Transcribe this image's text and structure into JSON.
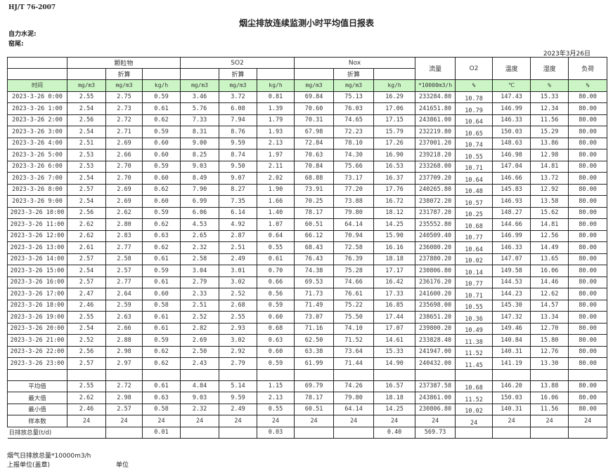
{
  "header": {
    "standard": "HJ/T  76-2007",
    "title": "烟尘排放连续监测小时平均值日报表",
    "company_label": "自力水泥:",
    "kiln_label": "窑尾:",
    "date": "2023年3月26日"
  },
  "table": {
    "groups": {
      "particulate": "颗粒物",
      "so2": "SO2",
      "nox": "Nox",
      "flow": "流量",
      "o2": "O2",
      "temp": "温度",
      "humidity": "湿度",
      "load": "负荷",
      "converted": "折算"
    },
    "units": [
      "时间",
      "mg/m3",
      "mg/m3",
      "kg/h",
      "mg/m3",
      "mg/m3",
      "kg/h",
      "mg/m3",
      "mg/m3",
      "kg/h",
      "*10000m3/h",
      "%",
      "℃",
      "%",
      "%"
    ],
    "rows": [
      [
        "2023-3-26 0:00",
        "2.55",
        "2.75",
        "0.59",
        "3.46",
        "3.72",
        "0.81",
        "69.84",
        "75.13",
        "16.29",
        "233284.80",
        "10.78",
        "147.43",
        "15.33",
        "80.00"
      ],
      [
        "2023-3-26 1:00",
        "2.54",
        "2.73",
        "0.61",
        "5.76",
        "6.08",
        "1.39",
        "70.60",
        "76.03",
        "17.06",
        "241651.80",
        "10.79",
        "146.99",
        "12.34",
        "80.00"
      ],
      [
        "2023-3-26 2:00",
        "2.56",
        "2.72",
        "0.62",
        "7.33",
        "7.94",
        "1.79",
        "70.31",
        "74.65",
        "17.15",
        "243861.00",
        "10.64",
        "146.33",
        "11.56",
        "80.00"
      ],
      [
        "2023-3-26 3:00",
        "2.54",
        "2.71",
        "0.59",
        "8.31",
        "8.76",
        "1.93",
        "67.98",
        "72.23",
        "15.79",
        "232219.80",
        "10.65",
        "150.03",
        "15.29",
        "80.00"
      ],
      [
        "2023-3-26 4:00",
        "2.51",
        "2.69",
        "0.60",
        "9.00",
        "9.59",
        "2.13",
        "72.84",
        "78.10",
        "17.26",
        "237001.20",
        "10.74",
        "148.63",
        "13.86",
        "80.00"
      ],
      [
        "2023-3-26 5:00",
        "2.53",
        "2.66",
        "0.60",
        "8.25",
        "8.74",
        "1.97",
        "70.63",
        "74.30",
        "16.90",
        "239218.20",
        "10.55",
        "146.98",
        "12.98",
        "80.00"
      ],
      [
        "2023-3-26 6:00",
        "2.53",
        "2.70",
        "0.59",
        "9.03",
        "9.50",
        "2.11",
        "70.84",
        "75.66",
        "16.53",
        "233268.00",
        "10.71",
        "147.04",
        "14.81",
        "80.00"
      ],
      [
        "2023-3-26 7:00",
        "2.54",
        "2.70",
        "0.60",
        "8.49",
        "9.07",
        "2.02",
        "68.88",
        "73.17",
        "16.37",
        "237709.20",
        "10.64",
        "146.66",
        "13.72",
        "80.00"
      ],
      [
        "2023-3-26 8:00",
        "2.57",
        "2.69",
        "0.62",
        "7.90",
        "8.27",
        "1.90",
        "73.91",
        "77.20",
        "17.76",
        "240265.80",
        "10.48",
        "145.83",
        "12.92",
        "80.00"
      ],
      [
        "2023-3-26 9:00",
        "2.54",
        "2.69",
        "0.60",
        "6.99",
        "7.35",
        "1.66",
        "70.25",
        "73.88",
        "16.72",
        "238072.20",
        "10.57",
        "146.93",
        "13.58",
        "80.00"
      ],
      [
        "2023-3-26 10:00",
        "2.56",
        "2.62",
        "0.59",
        "6.06",
        "6.14",
        "1.40",
        "78.17",
        "79.80",
        "18.12",
        "231787.20",
        "10.25",
        "148.27",
        "15.62",
        "80.00"
      ],
      [
        "2023-3-26 11:00",
        "2.62",
        "2.80",
        "0.62",
        "4.53",
        "4.92",
        "1.07",
        "60.51",
        "64.14",
        "14.25",
        "235552.80",
        "10.68",
        "144.66",
        "14.81",
        "80.00"
      ],
      [
        "2023-3-26 12:00",
        "2.62",
        "2.83",
        "0.63",
        "2.65",
        "2.87",
        "0.64",
        "66.12",
        "70.94",
        "15.90",
        "240509.40",
        "10.77",
        "146.99",
        "12.56",
        "80.00"
      ],
      [
        "2023-3-26 13:00",
        "2.61",
        "2.77",
        "0.62",
        "2.32",
        "2.51",
        "0.55",
        "68.43",
        "72.58",
        "16.16",
        "236080.20",
        "10.64",
        "146.33",
        "14.49",
        "80.00"
      ],
      [
        "2023-3-26 14:00",
        "2.57",
        "2.58",
        "0.61",
        "2.58",
        "2.49",
        "0.61",
        "76.43",
        "76.39",
        "18.18",
        "237880.20",
        "10.02",
        "147.07",
        "13.65",
        "80.00"
      ],
      [
        "2023-3-26 15:00",
        "2.54",
        "2.57",
        "0.59",
        "3.04",
        "3.01",
        "0.70",
        "74.38",
        "75.28",
        "17.17",
        "230806.80",
        "10.14",
        "149.58",
        "16.06",
        "80.00"
      ],
      [
        "2023-3-26 16:00",
        "2.57",
        "2.77",
        "0.61",
        "2.79",
        "3.02",
        "0.66",
        "69.53",
        "74.66",
        "16.42",
        "236176.20",
        "10.77",
        "144.53",
        "14.46",
        "80.00"
      ],
      [
        "2023-3-26 17:00",
        "2.47",
        "2.64",
        "0.60",
        "2.33",
        "2.52",
        "0.56",
        "71.73",
        "76.61",
        "17.33",
        "241600.20",
        "10.71",
        "144.23",
        "12.62",
        "80.00"
      ],
      [
        "2023-3-26 18:00",
        "2.46",
        "2.59",
        "0.58",
        "2.51",
        "2.68",
        "0.59",
        "71.49",
        "75.22",
        "16.85",
        "235698.00",
        "10.55",
        "145.30",
        "14.57",
        "80.00"
      ],
      [
        "2023-3-26 19:00",
        "2.55",
        "2.63",
        "0.61",
        "2.52",
        "2.55",
        "0.60",
        "73.07",
        "75.50",
        "17.44",
        "238651.20",
        "10.36",
        "147.32",
        "13.34",
        "80.00"
      ],
      [
        "2023-3-26 20:00",
        "2.54",
        "2.66",
        "0.61",
        "2.82",
        "2.93",
        "0.68",
        "71.16",
        "74.10",
        "17.07",
        "239800.20",
        "10.49",
        "149.46",
        "12.70",
        "80.00"
      ],
      [
        "2023-3-26 21:00",
        "2.52",
        "2.88",
        "0.59",
        "2.69",
        "3.02",
        "0.63",
        "62.50",
        "71.52",
        "14.61",
        "233828.40",
        "11.38",
        "140.84",
        "15.80",
        "80.00"
      ],
      [
        "2023-3-26 22:00",
        "2.56",
        "2.98",
        "0.62",
        "2.50",
        "2.92",
        "0.60",
        "63.38",
        "73.64",
        "15.33",
        "241947.00",
        "11.52",
        "140.31",
        "12.76",
        "80.00"
      ],
      [
        "2023-3-26 23:00",
        "2.57",
        "2.97",
        "0.62",
        "2.43",
        "2.79",
        "0.59",
        "61.99",
        "71.44",
        "14.90",
        "240432.00",
        "11.45",
        "141.19",
        "13.30",
        "80.00"
      ]
    ],
    "summary": [
      [
        "平均值",
        "2.55",
        "2.72",
        "0.61",
        "4.84",
        "5.14",
        "1.15",
        "69.79",
        "74.26",
        "16.57",
        "237387.58",
        "10.68",
        "146.20",
        "13.88",
        "80.00"
      ],
      [
        "最大值",
        "2.62",
        "2.98",
        "0.63",
        "9.03",
        "9.59",
        "2.13",
        "78.17",
        "79.80",
        "18.18",
        "243861.00",
        "11.52",
        "150.03",
        "16.06",
        "80.00"
      ],
      [
        "最小值",
        "2.46",
        "2.57",
        "0.58",
        "2.32",
        "2.49",
        "0.55",
        "60.51",
        "64.14",
        "14.25",
        "230806.80",
        "10.02",
        "140.31",
        "11.56",
        "80.00"
      ],
      [
        "样本数",
        "24",
        "24",
        "24",
        "24",
        "24",
        "24",
        "24",
        "24",
        "24",
        "24",
        "24",
        "24",
        "24",
        "24"
      ]
    ],
    "daily_total": {
      "label": "日排放总量(t/d)",
      "particulate": "0.01",
      "so2": "0.03",
      "nox": "0.40",
      "flow": "569.73"
    }
  },
  "footer": {
    "flue_gas_total": "烟气日排放总量*10000m3/h",
    "reporting_unit": "上报单位(盖章)",
    "unit": "单位"
  },
  "colors": {
    "unit_row_bg": "#ccf5c6",
    "border": "#222222"
  }
}
